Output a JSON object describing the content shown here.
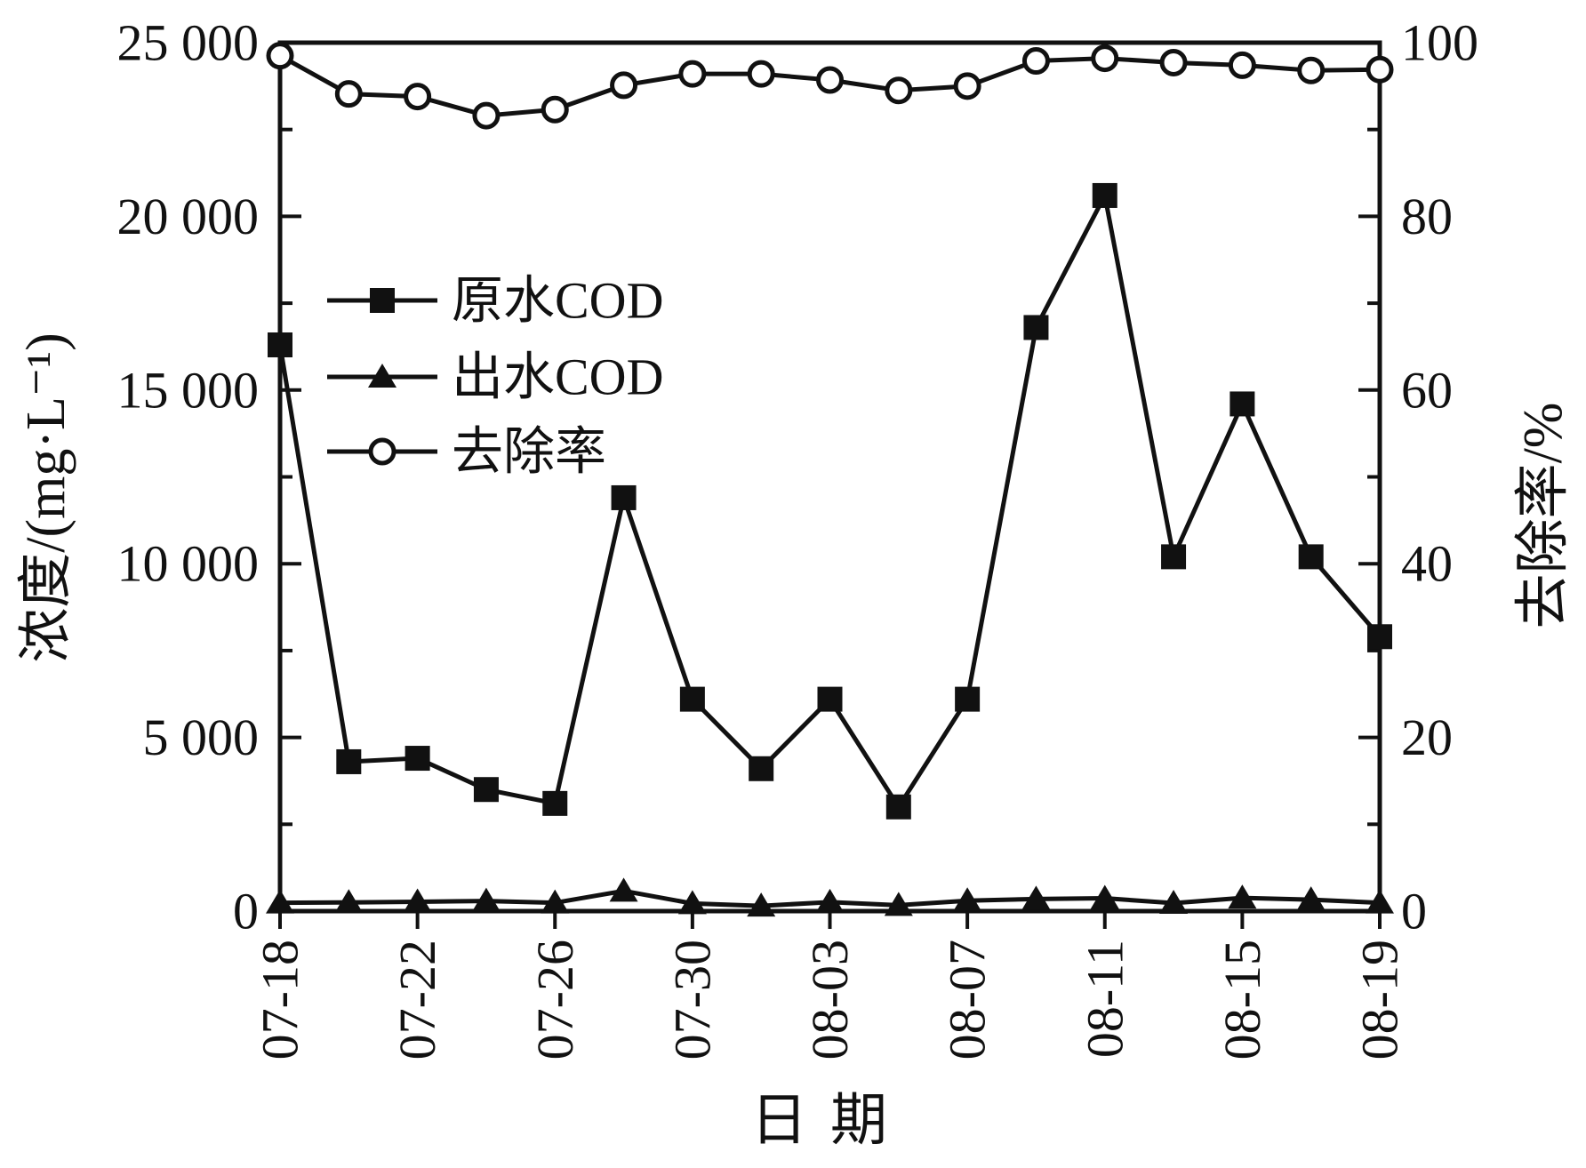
{
  "figure": {
    "background": "#ffffff",
    "ink": "#111111"
  },
  "chart_data": {
    "type": "line",
    "title": "",
    "xlabel": "日期",
    "ylabel_left": "浓度/(mg·L⁻¹)",
    "ylabel_right": "去除率/%",
    "grid": false,
    "x_categories": [
      "07-18",
      "07-20",
      "07-22",
      "07-24",
      "07-26",
      "07-28",
      "07-30",
      "08-01",
      "08-03",
      "08-05",
      "08-07",
      "08-09",
      "08-11",
      "08-13",
      "08-15",
      "08-17",
      "08-19"
    ],
    "x_axis": {
      "labeled_tick_indices": [
        0,
        2,
        4,
        6,
        8,
        10,
        12,
        14,
        16
      ],
      "tick_labels": [
        "07-18",
        "07-22",
        "07-26",
        "07-30",
        "08-03",
        "08-07",
        "08-11",
        "08-15",
        "08-19"
      ],
      "label_rotation_deg": -90
    },
    "y_left_axis": {
      "min": 0,
      "max": 25000,
      "tick_values": [
        0,
        5000,
        10000,
        15000,
        20000,
        25000
      ],
      "tick_labels": [
        "0",
        "5 000",
        "10 000",
        "15 000",
        "20 000",
        "25 000"
      ],
      "minor_tick_values": [
        2500,
        7500,
        12500,
        17500,
        22500
      ]
    },
    "y_right_axis": {
      "min": 0,
      "max": 100,
      "tick_values": [
        0,
        20,
        40,
        60,
        80,
        100
      ],
      "tick_labels": [
        "0",
        "20",
        "40",
        "60",
        "80",
        "100"
      ],
      "minor_tick_values": [
        10,
        30,
        50,
        70,
        90
      ]
    },
    "series": [
      {
        "name": "原水COD",
        "axis": "left",
        "marker": "filled-square",
        "values": [
          16300,
          4300,
          4400,
          3500,
          3100,
          11900,
          6100,
          4100,
          6100,
          3000,
          6100,
          16800,
          20600,
          10200,
          14600,
          10200,
          7900
        ]
      },
      {
        "name": "出水COD",
        "axis": "left",
        "marker": "filled-triangle",
        "values": [
          240,
          250,
          270,
          290,
          240,
          580,
          220,
          150,
          260,
          170,
          300,
          350,
          370,
          230,
          380,
          330,
          240
        ]
      },
      {
        "name": "去除率",
        "axis": "right",
        "marker": "open-circle",
        "values": [
          98.5,
          94.1,
          93.8,
          91.6,
          92.3,
          95.1,
          96.4,
          96.4,
          95.7,
          94.5,
          95.0,
          97.9,
          98.2,
          97.7,
          97.4,
          96.8,
          96.9
        ]
      }
    ],
    "legend": {
      "position": "upper-left-inside",
      "items": [
        "原水COD",
        "出水COD",
        "去除率"
      ]
    }
  }
}
